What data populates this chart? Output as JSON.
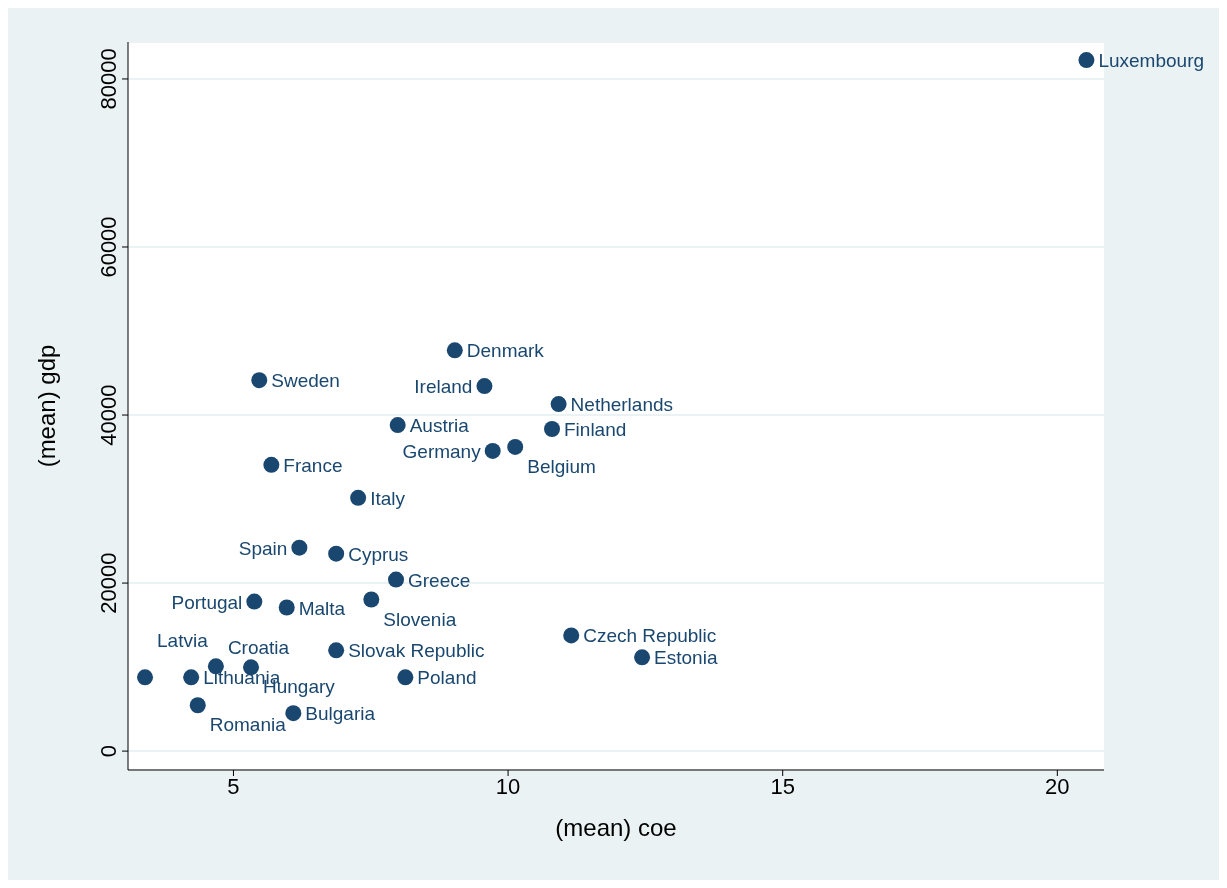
{
  "chart_data": {
    "type": "scatter",
    "xlabel": "(mean) coe",
    "ylabel": "(mean) gdp",
    "color": "#1a476f",
    "marker": "circle",
    "grid": "y",
    "xlim": [
      3.08,
      20.85
    ],
    "ylim": [
      -2250,
      84400
    ],
    "xticks": [
      5,
      10,
      15,
      20
    ],
    "yticks": [
      0,
      20000,
      40000,
      60000,
      80000
    ],
    "x": [
      20.53,
      9.03,
      5.47,
      9.57,
      10.92,
      7.99,
      10.8,
      10.13,
      9.72,
      5.69,
      7.27,
      6.2,
      6.87,
      7.96,
      7.51,
      5.38,
      5.97,
      11.15,
      6.87,
      12.44,
      4.68,
      5.32,
      3.39,
      4.23,
      8.13,
      4.35,
      6.09
    ],
    "values": [
      82250,
      47700,
      44150,
      43450,
      41300,
      38800,
      38340,
      36200,
      35730,
      34070,
      30150,
      24210,
      23500,
      20420,
      18040,
      17800,
      17090,
      13770,
      11990,
      11160,
      10090,
      9970,
      8780,
      8780,
      8780,
      5460,
      4510
    ],
    "annotations": [
      {
        "text": "Luxembourg",
        "x": 20.53,
        "y": 82250
      },
      {
        "text": "Denmark",
        "x": 9.03,
        "y": 47700
      },
      {
        "text": "Sweden",
        "x": 5.47,
        "y": 44150
      },
      {
        "text": "Ireland",
        "x": 9.57,
        "y": 43450
      },
      {
        "text": "Netherlands",
        "x": 10.92,
        "y": 41300
      },
      {
        "text": "Austria",
        "x": 7.99,
        "y": 38800
      },
      {
        "text": "Finland",
        "x": 10.8,
        "y": 38340
      },
      {
        "text": "Belgium",
        "x": 10.13,
        "y": 36200
      },
      {
        "text": "Germany",
        "x": 9.72,
        "y": 35730
      },
      {
        "text": "France",
        "x": 5.69,
        "y": 34070
      },
      {
        "text": "Italy",
        "x": 7.27,
        "y": 30150
      },
      {
        "text": "Spain",
        "x": 6.2,
        "y": 24210
      },
      {
        "text": "Cyprus",
        "x": 6.87,
        "y": 23500
      },
      {
        "text": "Greece",
        "x": 7.96,
        "y": 20420
      },
      {
        "text": "Slovenia",
        "x": 7.51,
        "y": 18040
      },
      {
        "text": "Portugal",
        "x": 5.38,
        "y": 17800
      },
      {
        "text": "Malta",
        "x": 5.97,
        "y": 17090
      },
      {
        "text": "Czech Republic",
        "x": 11.15,
        "y": 13770
      },
      {
        "text": "Slovak Republic",
        "x": 6.87,
        "y": 11990
      },
      {
        "text": "Estonia",
        "x": 12.44,
        "y": 11160
      },
      {
        "text": "Croatia",
        "x": 4.68,
        "y": 10090
      },
      {
        "text": "Hungary",
        "x": 5.32,
        "y": 9970
      },
      {
        "text": "Latvia",
        "x": 3.39,
        "y": 8780
      },
      {
        "text": "Lithuania",
        "x": 4.23,
        "y": 8780
      },
      {
        "text": "Poland",
        "x": 8.13,
        "y": 8780
      },
      {
        "text": "Romania",
        "x": 4.35,
        "y": 5460
      },
      {
        "text": "Bulgaria",
        "x": 6.09,
        "y": 4510
      }
    ]
  }
}
